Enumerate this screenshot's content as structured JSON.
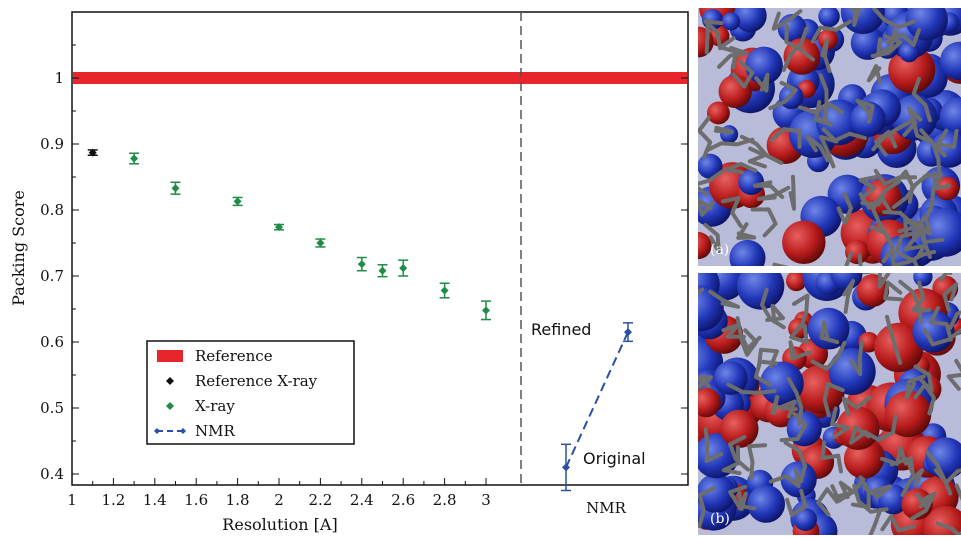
{
  "chart_data": {
    "type": "scatter",
    "ylabel": "Packing Score",
    "xlabel": "Resolution [A]",
    "xlim": [
      1,
      3.15
    ],
    "ylim": [
      0.38,
      1.1
    ],
    "x_ticks": [
      "1",
      "1.2",
      "1.4",
      "1.6",
      "1.8",
      "2",
      "2.2",
      "2.4",
      "2.6",
      "2.8",
      "3"
    ],
    "y_ticks": [
      "0.4",
      "0.5",
      "0.6",
      "0.7",
      "0.8",
      "0.9",
      "1"
    ],
    "nmr_axis_label": "NMR",
    "legend_position": "bottom-left",
    "grid": false,
    "reference": {
      "name": "Reference",
      "value": 1.0,
      "color": "#e8252a"
    },
    "reference_xray": {
      "name": "Reference X-ray",
      "color": "#111111",
      "points": [
        {
          "x": 1.1,
          "y": 0.887,
          "err": 0.004
        }
      ]
    },
    "xray": {
      "name": "X-ray",
      "color": "#1e8c46",
      "points": [
        {
          "x": 1.3,
          "y": 0.878,
          "err": 0.008
        },
        {
          "x": 1.5,
          "y": 0.833,
          "err": 0.009
        },
        {
          "x": 1.8,
          "y": 0.813,
          "err": 0.006
        },
        {
          "x": 2.0,
          "y": 0.774,
          "err": 0.004
        },
        {
          "x": 2.2,
          "y": 0.75,
          "err": 0.006
        },
        {
          "x": 2.4,
          "y": 0.718,
          "err": 0.01
        },
        {
          "x": 2.5,
          "y": 0.708,
          "err": 0.009
        },
        {
          "x": 2.6,
          "y": 0.712,
          "err": 0.012
        },
        {
          "x": 2.8,
          "y": 0.678,
          "err": 0.011
        },
        {
          "x": 3.0,
          "y": 0.648,
          "err": 0.014
        }
      ]
    },
    "nmr": {
      "name": "NMR",
      "color": "#2b4fa8",
      "points": [
        {
          "label": "Original",
          "y": 0.41,
          "err": 0.035
        },
        {
          "label": "Refined",
          "y": 0.615,
          "err": 0.014
        }
      ]
    }
  },
  "panels": [
    {
      "label": "(a)"
    },
    {
      "label": "(b)"
    }
  ]
}
